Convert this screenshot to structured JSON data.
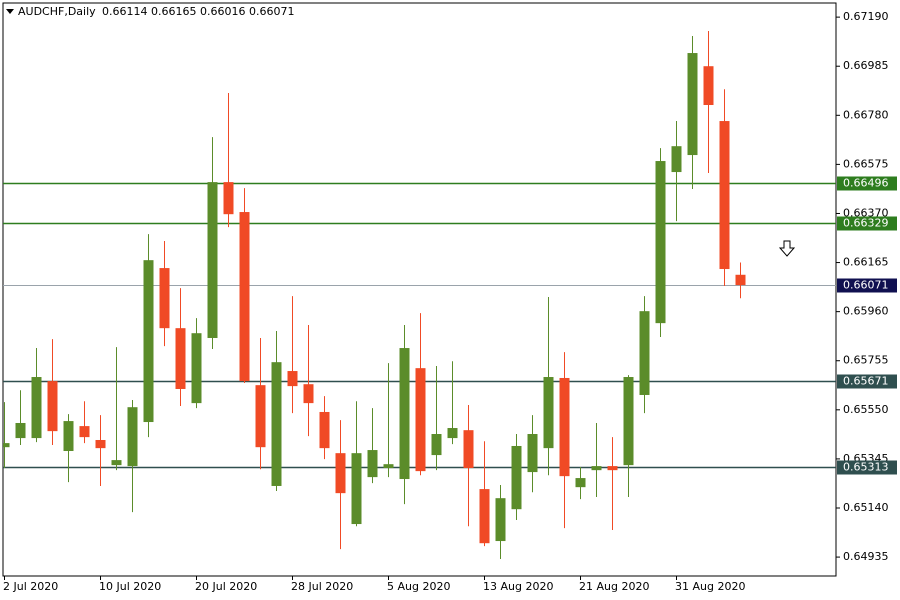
{
  "chart_data": {
    "type": "candlestick",
    "symbol": "AUDCHF,Daily",
    "categories": [
      "2 Jul 2020",
      null,
      null,
      null,
      null,
      null,
      "10 Jul 2020",
      null,
      null,
      null,
      null,
      null,
      "20 Jul 2020",
      null,
      null,
      null,
      null,
      null,
      "28 Jul 2020",
      null,
      null,
      null,
      null,
      null,
      "5 Aug 2020",
      null,
      null,
      null,
      null,
      null,
      "13 Aug 2020",
      null,
      null,
      null,
      null,
      null,
      "21 Aug 2020",
      null,
      null,
      null,
      null,
      null,
      "31 Aug 2020",
      null,
      null,
      null,
      null
    ],
    "open": [
      0.65394,
      0.65432,
      0.65432,
      0.6567,
      0.65378,
      0.65482,
      0.65424,
      0.65319,
      0.65315,
      0.65499,
      0.66142,
      0.65891,
      0.65578,
      0.6585,
      0.66501,
      0.66376,
      0.65653,
      0.65232,
      0.65712,
      0.65657,
      0.65541,
      0.65369,
      0.65073,
      0.65269,
      0.65307,
      0.65261,
      0.65724,
      0.65361,
      0.65432,
      0.65465,
      0.65219,
      0.65002,
      0.65135,
      0.6529,
      0.6539,
      0.65683,
      0.65227,
      0.65298,
      0.65315,
      0.65319,
      0.65612,
      0.65912,
      0.66543,
      0.66614,
      0.66985,
      0.66756,
      0.66114
    ],
    "high": [
      0.65582,
      0.65632,
      0.65808,
      0.65845,
      0.65532,
      0.65586,
      0.65528,
      0.65812,
      0.65591,
      0.66284,
      0.66255,
      0.66058,
      0.65933,
      0.66689,
      0.66873,
      0.66476,
      0.6585,
      0.65879,
      0.66025,
      0.65904,
      0.65607,
      0.65507,
      0.65586,
      0.65557,
      0.65745,
      0.65904,
      0.65954,
      0.65733,
      0.65753,
      0.6557,
      0.65419,
      0.65236,
      0.65449,
      0.65528,
      0.66021,
      0.65791,
      0.65311,
      0.65495,
      0.65436,
      0.65695,
      0.66025,
      0.66643,
      0.66756,
      0.67111,
      0.67132,
      0.66889,
      0.66165
    ],
    "low": [
      0.65307,
      0.65403,
      0.65415,
      0.65403,
      0.65248,
      0.65411,
      0.65232,
      0.65298,
      0.65123,
      0.65436,
      0.65816,
      0.65566,
      0.65557,
      0.65804,
      0.66313,
      0.65662,
      0.65302,
      0.65211,
      0.65536,
      0.6544,
      0.65344,
      0.64968,
      0.65064,
      0.65244,
      0.65269,
      0.65156,
      0.65277,
      0.65298,
      0.65407,
      0.65064,
      0.64981,
      0.64927,
      0.6509,
      0.65206,
      0.65277,
      0.65056,
      0.65177,
      0.65186,
      0.65048,
      0.65186,
      0.65536,
      0.65854,
      0.66338,
      0.66472,
      0.66539,
      0.66067,
      0.66016
    ],
    "close": [
      0.65411,
      0.65495,
      0.65687,
      0.65461,
      0.65503,
      0.65436,
      0.6539,
      0.6534,
      0.65561,
      0.66175,
      0.65891,
      0.65637,
      0.6587,
      0.66501,
      0.66367,
      0.6567,
      0.65394,
      0.65749,
      0.65649,
      0.65578,
      0.6539,
      0.65202,
      0.65369,
      0.65382,
      0.65323,
      0.65808,
      0.65294,
      0.65449,
      0.65474,
      0.65307,
      0.64993,
      0.65181,
      0.65399,
      0.65449,
      0.65687,
      0.65273,
      0.65265,
      0.65315,
      0.65298,
      0.65687,
      0.65962,
      0.66589,
      0.66651,
      0.6704,
      0.66823,
      0.66138,
      0.66071
    ],
    "up_color": "#5b8c2a",
    "down_color": "#f04a25",
    "ylim": [
      0.64856,
      0.67249
    ],
    "yticks": [
      {
        "value": 0.6719,
        "label": "0.67190"
      },
      0.66985,
      {
        "value": 0.6678,
        "label": "0.66780"
      },
      0.66575,
      {
        "value": 0.6637,
        "label": "0.66370"
      },
      0.66165,
      {
        "value": 0.6596,
        "label": "0.65960"
      },
      0.65755,
      {
        "value": 0.6555,
        "label": "0.65550"
      },
      0.65345,
      {
        "value": 0.6514,
        "label": "0.65140"
      },
      0.64935
    ],
    "levels": [
      {
        "value": 0.66496,
        "color": "#2e7d1f"
      },
      {
        "value": 0.66329,
        "color": "#2e7d1f"
      },
      {
        "value": 0.65671,
        "color": "#2f4f4f"
      },
      {
        "value": 0.65313,
        "color": "#2f4f4f"
      }
    ],
    "bid_line_color": "#9aa3ab",
    "bid_label_color": "#101050"
  }
}
